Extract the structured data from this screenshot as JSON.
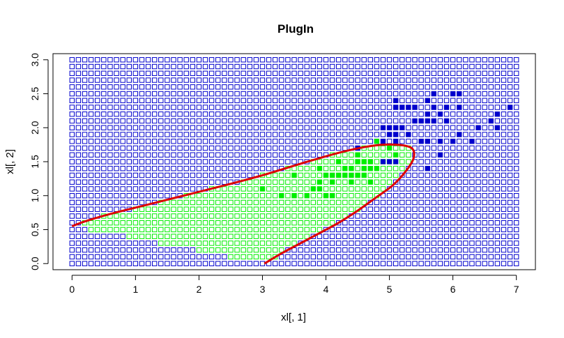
{
  "chart_data": {
    "type": "scatter",
    "title": "PlugIn",
    "xlabel": "xl[, 1]",
    "ylabel": "xl[, 2]",
    "xlim": [
      -0.3,
      7.3
    ],
    "ylim": [
      -0.09,
      3.09
    ],
    "x_ticks": [
      "0",
      "1",
      "2",
      "3",
      "4",
      "5",
      "6",
      "7"
    ],
    "y_ticks": [
      "0.0",
      "0.5",
      "1.0",
      "1.5",
      "2.0",
      "2.5",
      "3.0"
    ],
    "grid": {
      "x_start": 0,
      "x_end": 7,
      "x_step": 0.1,
      "y_start": 0,
      "y_end": 3,
      "y_step": 0.1,
      "marker": "open square"
    },
    "colors": {
      "class_inside": "#00ee00",
      "class_outside": "#0000cc",
      "boundary": "#dd0000",
      "box": "#000000"
    },
    "boundary_curve": {
      "points": [
        [
          3.03,
          0.0
        ],
        [
          3.3,
          0.15
        ],
        [
          3.6,
          0.3
        ],
        [
          3.9,
          0.45
        ],
        [
          4.2,
          0.6
        ],
        [
          4.5,
          0.78
        ],
        [
          4.8,
          0.98
        ],
        [
          5.05,
          1.15
        ],
        [
          5.25,
          1.35
        ],
        [
          5.38,
          1.55
        ],
        [
          5.35,
          1.7
        ],
        [
          5.1,
          1.75
        ],
        [
          4.7,
          1.73
        ],
        [
          4.2,
          1.63
        ],
        [
          3.6,
          1.47
        ],
        [
          3.0,
          1.3
        ],
        [
          2.4,
          1.15
        ],
        [
          1.8,
          1.01
        ],
        [
          1.2,
          0.87
        ],
        [
          0.6,
          0.73
        ],
        [
          0.2,
          0.62
        ],
        [
          0.0,
          0.55
        ]
      ]
    },
    "filled_points": [
      {
        "class": "inside",
        "points": [
          [
            3.0,
            1.1
          ],
          [
            3.3,
            1.0
          ],
          [
            3.5,
            1.0
          ],
          [
            3.5,
            1.3
          ],
          [
            3.7,
            1.0
          ],
          [
            3.8,
            1.1
          ],
          [
            3.9,
            1.1
          ],
          [
            3.9,
            1.2
          ],
          [
            3.9,
            1.4
          ],
          [
            4.0,
            1.0
          ],
          [
            4.0,
            1.3
          ],
          [
            4.1,
            1.0
          ],
          [
            4.1,
            1.2
          ],
          [
            4.1,
            1.3
          ],
          [
            4.2,
            1.3
          ],
          [
            4.2,
            1.5
          ],
          [
            4.3,
            1.3
          ],
          [
            4.3,
            1.4
          ],
          [
            4.4,
            1.2
          ],
          [
            4.4,
            1.3
          ],
          [
            4.4,
            1.4
          ],
          [
            4.5,
            1.3
          ],
          [
            4.5,
            1.5
          ],
          [
            4.5,
            1.6
          ],
          [
            4.6,
            1.3
          ],
          [
            4.6,
            1.4
          ],
          [
            4.6,
            1.5
          ],
          [
            4.7,
            1.2
          ],
          [
            4.7,
            1.4
          ],
          [
            4.7,
            1.5
          ],
          [
            4.8,
            1.4
          ],
          [
            4.8,
            1.8
          ],
          [
            4.9,
            1.5
          ],
          [
            5.0,
            1.7
          ],
          [
            5.1,
            1.6
          ]
        ]
      },
      {
        "class": "outside",
        "points": [
          [
            4.5,
            1.7
          ],
          [
            4.9,
            1.5
          ],
          [
            4.9,
            1.8
          ],
          [
            4.9,
            2.0
          ],
          [
            5.0,
            1.5
          ],
          [
            5.0,
            1.9
          ],
          [
            5.0,
            2.0
          ],
          [
            5.1,
            1.5
          ],
          [
            5.1,
            1.8
          ],
          [
            5.1,
            1.9
          ],
          [
            5.1,
            2.0
          ],
          [
            5.1,
            2.3
          ],
          [
            5.1,
            2.4
          ],
          [
            5.2,
            2.0
          ],
          [
            5.2,
            2.3
          ],
          [
            5.3,
            1.9
          ],
          [
            5.3,
            2.3
          ],
          [
            5.4,
            2.1
          ],
          [
            5.4,
            2.3
          ],
          [
            5.5,
            1.8
          ],
          [
            5.5,
            2.1
          ],
          [
            5.6,
            1.4
          ],
          [
            5.6,
            1.8
          ],
          [
            5.6,
            2.1
          ],
          [
            5.6,
            2.2
          ],
          [
            5.6,
            2.4
          ],
          [
            5.7,
            2.1
          ],
          [
            5.7,
            2.3
          ],
          [
            5.7,
            2.5
          ],
          [
            5.8,
            1.6
          ],
          [
            5.8,
            1.8
          ],
          [
            5.8,
            2.2
          ],
          [
            5.9,
            2.1
          ],
          [
            5.9,
            2.3
          ],
          [
            6.0,
            1.8
          ],
          [
            6.0,
            2.5
          ],
          [
            6.1,
            1.9
          ],
          [
            6.1,
            2.3
          ],
          [
            6.1,
            2.5
          ],
          [
            6.3,
            1.8
          ],
          [
            6.4,
            2.0
          ],
          [
            6.6,
            2.1
          ],
          [
            6.7,
            2.0
          ],
          [
            6.7,
            2.2
          ],
          [
            6.9,
            2.3
          ]
        ]
      }
    ]
  }
}
